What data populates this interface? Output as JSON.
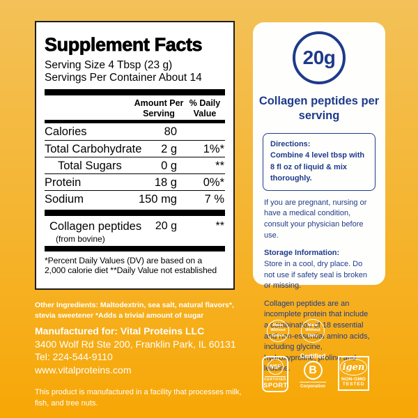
{
  "colors": {
    "background_top": "#F3C158",
    "background_bottom": "#F7A705",
    "panel_white": "#FFFFFF",
    "brand_blue": "#1E3A8C",
    "text_black": "#000000",
    "text_white": "#FFFFFF"
  },
  "supplement_facts": {
    "title": "Supplement Facts",
    "serving_size": "Serving Size 4 Tbsp (23 g)",
    "servings_per_container": "Servings Per Container About 14",
    "amount_header": "Amount Per Serving",
    "dv_header": "% Daily Value",
    "rows": [
      {
        "name": "Calories",
        "amount": "80",
        "dv": ""
      },
      {
        "name": "Total Carbohydrate",
        "amount": "2 g",
        "dv": "1%*"
      },
      {
        "name": "Total Sugars",
        "amount": "0 g",
        "dv": "**"
      },
      {
        "name": "Protein",
        "amount": "18 g",
        "dv": "0%*"
      },
      {
        "name": "Sodium",
        "amount": "150 mg",
        "dv": "7 %"
      }
    ],
    "collagen_row": {
      "name": "Collagen peptides",
      "source": "(from bovine)",
      "amount": "20 g",
      "dv": "**"
    },
    "footnote": "*Percent Daily Values (DV) are based on a 2,000 calorie diet **Daily Value not established"
  },
  "info_panel": {
    "badge_value": "20g",
    "heading": "Collagen peptides per serving",
    "directions_label": "Directions:",
    "directions_text": "Combine 4 level tbsp with 8 fl oz of liquid & mix thoroughly.",
    "pregnancy_note": "If you are pregnant, nursing or have a medical condition, consult your physician before use.",
    "storage_label": "Storage Information:",
    "storage_text": "Store in a cool, dry place. Do not use if safety seal is broken or missing.",
    "collagen_note": "Collagen peptides are an incomplete protein that include a combination of 18 essential and non-essential amino acids, including glycine, hydroxyproline, proline and leucine."
  },
  "footer": {
    "other_ingredients": "Other Ingredients: Maltodextrin, sea salt, natural flavors*, stevia sweetener *Adds a trivial amount of sugar",
    "manufactured_for": "Manufactured for: Vital Proteins LLC",
    "address": "3400 Wolf Rd Ste 200, Franklin Park, IL 60131",
    "tel": "Tel: 224-544-9110",
    "website": "www.vitalproteins.com",
    "facility_note": "This product is manufactured in a facility that processes milk, fish, and tree nuts."
  },
  "badges": {
    "gluten": "Made Without Gluten",
    "dairy": "Made Without Dairy",
    "nsf": {
      "logo": "NSF",
      "line1": "CERTIFIED",
      "line2": "SPORT"
    },
    "bcorp": {
      "top": "Certified",
      "letter": "B",
      "bottom": "Corporation"
    },
    "igen": {
      "word": "igen",
      "line1": "NON-GMO",
      "line2": "TESTED"
    }
  }
}
